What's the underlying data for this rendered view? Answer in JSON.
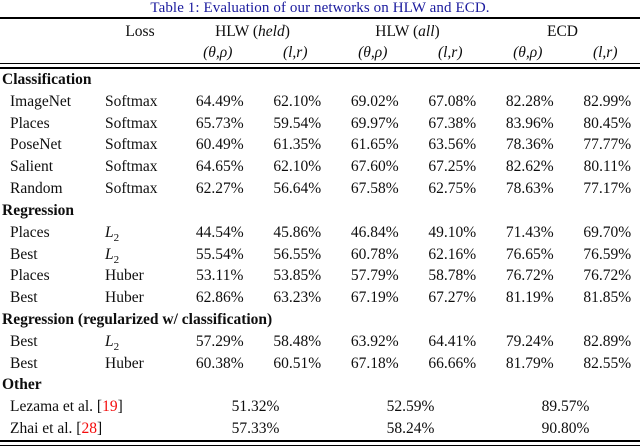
{
  "title": "Table 1: Evaluation of our networks on HLW and ECD.",
  "colors": {
    "title_blue": "#1b1b9e",
    "citation_red": "#f40b0b",
    "text": "#0e0e0e"
  },
  "header": {
    "loss_label": "Loss",
    "groups": [
      {
        "prefix": "HLW (",
        "emph": "held",
        "suffix": ")"
      },
      {
        "prefix": "HLW (",
        "emph": "all",
        "suffix": ")"
      },
      {
        "prefix": "ECD",
        "emph": "",
        "suffix": ""
      }
    ],
    "subheaders": [
      "(θ,ρ)",
      "(l,r)",
      "(θ,ρ)",
      "(l,r)",
      "(θ,ρ)",
      "(l,r)"
    ]
  },
  "sections": [
    {
      "heading": "Classification",
      "rows": [
        {
          "label": "ImageNet",
          "loss": "Softmax",
          "values": [
            "64.49%",
            "62.10%",
            "69.02%",
            "67.08%",
            "82.28%",
            "82.99%"
          ]
        },
        {
          "label": "Places",
          "loss": "Softmax",
          "values": [
            "65.73%",
            "59.54%",
            "69.97%",
            "67.38%",
            "83.96%",
            "80.45%"
          ]
        },
        {
          "label": "PoseNet",
          "loss": "Softmax",
          "values": [
            "60.49%",
            "61.35%",
            "61.65%",
            "63.56%",
            "78.36%",
            "77.77%"
          ]
        },
        {
          "label": "Salient",
          "loss": "Softmax",
          "values": [
            "64.65%",
            "62.10%",
            "67.60%",
            "67.25%",
            "82.62%",
            "80.11%"
          ]
        },
        {
          "label": "Random",
          "loss": "Softmax",
          "values": [
            "62.27%",
            "56.64%",
            "67.58%",
            "62.75%",
            "78.63%",
            "77.17%"
          ]
        }
      ]
    },
    {
      "heading": "Regression",
      "rows": [
        {
          "label": "Places",
          "loss": "L2",
          "values": [
            "44.54%",
            "45.86%",
            "46.84%",
            "49.10%",
            "71.43%",
            "69.70%"
          ]
        },
        {
          "label": "Best",
          "loss": "L2",
          "values": [
            "55.54%",
            "56.55%",
            "60.78%",
            "62.16%",
            "76.65%",
            "76.59%"
          ]
        },
        {
          "label": "Places",
          "loss": "Huber",
          "values": [
            "53.11%",
            "53.85%",
            "57.79%",
            "58.78%",
            "76.72%",
            "76.72%"
          ]
        },
        {
          "label": "Best",
          "loss": "Huber",
          "values": [
            "62.86%",
            "63.23%",
            "67.19%",
            "67.27%",
            "81.19%",
            "81.85%"
          ]
        }
      ]
    },
    {
      "heading": "Regression (regularized w/ classification)",
      "rows": [
        {
          "label": "Best",
          "loss": "L2",
          "values": [
            "57.29%",
            "58.48%",
            "63.92%",
            "64.41%",
            "79.24%",
            "82.89%"
          ]
        },
        {
          "label": "Best",
          "loss": "Huber",
          "values": [
            "60.38%",
            "60.51%",
            "67.18%",
            "66.66%",
            "81.79%",
            "82.55%"
          ]
        }
      ]
    },
    {
      "heading": "Other",
      "rows": [
        {
          "label_prefix": "Lezama et al. [",
          "citation": "19",
          "label_suffix": "]",
          "span_values": [
            "51.32%",
            "52.59%",
            "89.57%"
          ]
        },
        {
          "label_prefix": "Zhai et al. [",
          "citation": "28",
          "label_suffix": "]",
          "span_values": [
            "57.33%",
            "58.24%",
            "90.80%"
          ]
        }
      ]
    }
  ]
}
